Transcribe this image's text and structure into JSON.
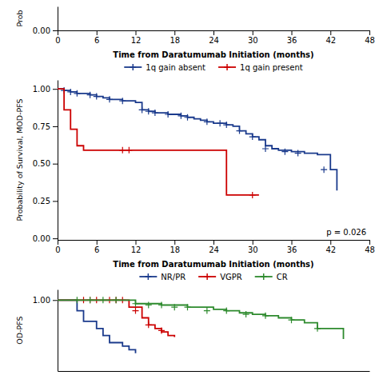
{
  "chart_data": [
    {
      "type": "line",
      "xlabel": "Time from Daratumumab Initiation (months)",
      "ylabel": "Prob",
      "xlim": [
        0,
        48
      ],
      "xticks": [
        0,
        6,
        12,
        18,
        24,
        30,
        36,
        42,
        48
      ],
      "ylim": [
        0.0,
        0.3
      ],
      "yticks": [
        {
          "value": 0.0,
          "label": "0.00"
        }
      ],
      "grid": false,
      "series": []
    },
    {
      "type": "line",
      "xlabel": "Time from Daratumumab Initiation (months)",
      "ylabel": "Probability of Survival, MOD-PFS",
      "annotation": "p = 0.026",
      "xlim": [
        0,
        48
      ],
      "xticks": [
        0,
        6,
        12,
        18,
        24,
        30,
        36,
        42,
        48
      ],
      "ylim": [
        -0.01,
        1.06
      ],
      "yticks": [
        {
          "value": 0.0,
          "label": "0.00"
        },
        0.25,
        {
          "value": 0.5,
          "label": "0.50"
        },
        0.75,
        {
          "value": 1.0,
          "label": "1.00"
        }
      ],
      "grid": false,
      "legend": "top",
      "series": [
        {
          "name": "1q gain absent",
          "color": "#1a3a8c",
          "line_style": "step",
          "marker": "plus",
          "x": [
            0,
            1,
            2,
            3,
            4,
            5,
            6,
            7,
            8,
            9,
            10,
            11,
            12,
            13,
            14,
            15,
            16,
            17,
            18,
            19,
            20,
            21,
            22,
            23,
            24,
            25,
            26,
            27,
            28,
            29,
            30,
            31,
            32,
            33,
            34,
            35,
            36,
            37,
            38,
            39,
            40,
            41,
            42,
            43
          ],
          "values": [
            1.0,
            0.99,
            0.98,
            0.97,
            0.97,
            0.96,
            0.95,
            0.94,
            0.93,
            0.93,
            0.92,
            0.92,
            0.91,
            0.86,
            0.85,
            0.84,
            0.84,
            0.83,
            0.83,
            0.82,
            0.81,
            0.8,
            0.79,
            0.78,
            0.77,
            0.77,
            0.76,
            0.75,
            0.72,
            0.7,
            0.68,
            0.66,
            0.62,
            0.6,
            0.59,
            0.59,
            0.58,
            0.58,
            0.57,
            0.57,
            0.56,
            0.56,
            0.46,
            0.32
          ],
          "censor_x": [
            1,
            2,
            3,
            5,
            6,
            8,
            10,
            13,
            14,
            15,
            17,
            19,
            20,
            23,
            25,
            26,
            28,
            30,
            32,
            35,
            37,
            41
          ],
          "censor_values": [
            0.99,
            0.98,
            0.97,
            0.96,
            0.95,
            0.93,
            0.92,
            0.86,
            0.85,
            0.84,
            0.83,
            0.82,
            0.81,
            0.78,
            0.77,
            0.76,
            0.72,
            0.68,
            0.6,
            0.58,
            0.57,
            0.46
          ]
        },
        {
          "name": "1q gain present",
          "color": "#cc0000",
          "line_style": "step",
          "marker": "plus",
          "x": [
            0,
            1,
            2,
            3,
            4,
            5,
            10,
            25,
            26,
            30,
            31
          ],
          "values": [
            1.0,
            0.86,
            0.73,
            0.62,
            0.59,
            0.59,
            0.59,
            0.59,
            0.29,
            0.29,
            0.29
          ],
          "censor_x": [
            10,
            11,
            30
          ],
          "censor_values": [
            0.59,
            0.59,
            0.29
          ]
        }
      ]
    },
    {
      "type": "line",
      "ylabel": "OD-PFS",
      "xlim": [
        0,
        48
      ],
      "xticks": [],
      "ylim": [
        0.0,
        1.15
      ],
      "yticks": [
        {
          "value": 1.0,
          "label": "1.00"
        }
      ],
      "tick_labels": "y",
      "grid": false,
      "legend": "top",
      "series": [
        {
          "name": "NR/PR",
          "color": "#1a3a8c",
          "line_style": "step",
          "marker": "plus",
          "x": [
            0,
            2,
            3,
            4,
            6,
            7,
            8,
            10,
            11,
            12
          ],
          "values": [
            1.0,
            1.0,
            0.85,
            0.7,
            0.6,
            0.5,
            0.4,
            0.35,
            0.3,
            0.25
          ]
        },
        {
          "name": "VGPR",
          "color": "#cc0000",
          "line_style": "step",
          "marker": "plus",
          "x": [
            0,
            3,
            4,
            5,
            6,
            7,
            8,
            10,
            11,
            13,
            14,
            15,
            16,
            17,
            18
          ],
          "values": [
            1.0,
            1.0,
            1.0,
            1.0,
            1.0,
            1.0,
            1.0,
            1.0,
            0.9,
            0.75,
            0.65,
            0.6,
            0.55,
            0.5,
            0.48
          ],
          "censor_x": [
            4,
            5,
            6,
            8,
            9,
            10,
            12,
            14,
            16
          ],
          "censor_values": [
            1.0,
            1.0,
            1.0,
            1.0,
            1.0,
            1.0,
            0.85,
            0.65,
            0.57
          ]
        },
        {
          "name": "CR",
          "color": "#2d8a2d",
          "line_style": "step",
          "marker": "plus",
          "x": [
            0,
            3,
            4,
            5,
            6,
            8,
            12,
            16,
            20,
            24,
            26,
            28,
            30,
            32,
            34,
            36,
            38,
            40,
            44
          ],
          "values": [
            1.0,
            1.0,
            1.0,
            1.0,
            1.0,
            1.0,
            0.95,
            0.93,
            0.9,
            0.87,
            0.85,
            0.82,
            0.8,
            0.78,
            0.75,
            0.72,
            0.68,
            0.6,
            0.45
          ],
          "censor_x": [
            3,
            5,
            7,
            9,
            12,
            14,
            16,
            18,
            20,
            23,
            26,
            29,
            32,
            36,
            40
          ],
          "censor_values": [
            1.0,
            1.0,
            1.0,
            1.0,
            0.95,
            0.93,
            0.93,
            0.9,
            0.9,
            0.85,
            0.85,
            0.8,
            0.78,
            0.72,
            0.6
          ]
        }
      ]
    }
  ]
}
